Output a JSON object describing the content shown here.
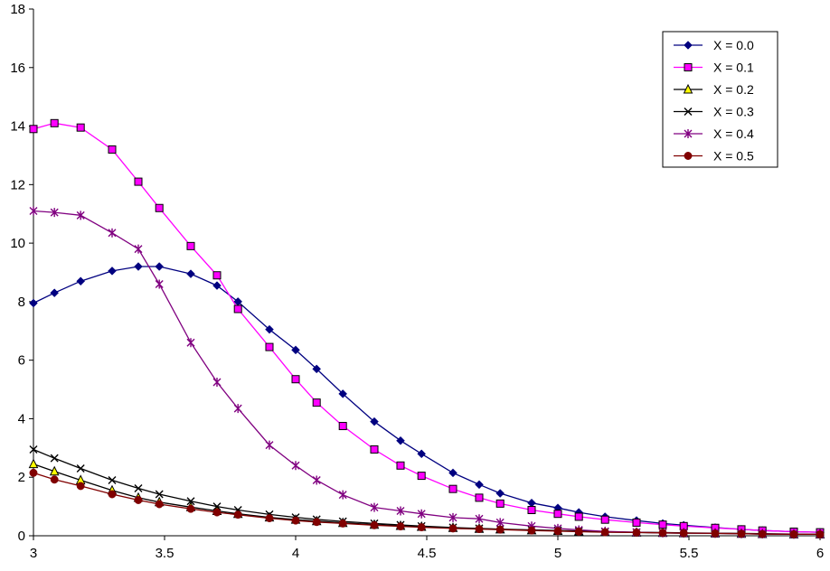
{
  "chart_data": {
    "type": "line",
    "title": "",
    "xlabel": "",
    "ylabel": "",
    "xlim": [
      3,
      6
    ],
    "ylim": [
      0,
      18
    ],
    "x_ticks": [
      3,
      3.5,
      4,
      4.5,
      5,
      5.5,
      6
    ],
    "x_tick_labels": [
      "3",
      "3.5",
      "4",
      "4.5",
      "5",
      "5.5",
      "6"
    ],
    "y_ticks": [
      0,
      2,
      4,
      6,
      8,
      10,
      12,
      14,
      16,
      18
    ],
    "y_tick_labels": [
      "0",
      "2",
      "4",
      "6",
      "8",
      "10",
      "12",
      "14",
      "16",
      "18"
    ],
    "grid": false,
    "legend_position": "top-right",
    "x": [
      3.0,
      3.08,
      3.18,
      3.3,
      3.4,
      3.48,
      3.6,
      3.7,
      3.78,
      3.9,
      4.0,
      4.08,
      4.18,
      4.3,
      4.4,
      4.48,
      4.6,
      4.7,
      4.78,
      4.9,
      5.0,
      5.08,
      5.18,
      5.3,
      5.4,
      5.48,
      5.6,
      5.7,
      5.78,
      5.9,
      6.0
    ],
    "series": [
      {
        "name": "X = 0.0",
        "color": "#000080",
        "marker": "diamond",
        "values": [
          7.95,
          8.3,
          8.7,
          9.05,
          9.2,
          9.2,
          8.95,
          8.55,
          8.0,
          7.05,
          6.35,
          5.7,
          4.85,
          3.9,
          3.25,
          2.8,
          2.15,
          1.75,
          1.45,
          1.12,
          0.95,
          0.8,
          0.65,
          0.52,
          0.42,
          0.36,
          0.28,
          0.22,
          0.18,
          0.14,
          0.12
        ]
      },
      {
        "name": "X = 0.1",
        "color": "#ff00ff",
        "marker": "square",
        "values": [
          13.9,
          14.1,
          13.95,
          13.2,
          12.1,
          11.2,
          9.9,
          8.9,
          7.75,
          6.45,
          5.35,
          4.55,
          3.75,
          2.95,
          2.4,
          2.05,
          1.6,
          1.3,
          1.1,
          0.88,
          0.75,
          0.65,
          0.55,
          0.45,
          0.38,
          0.33,
          0.27,
          0.22,
          0.18,
          0.14,
          0.12
        ]
      },
      {
        "name": "X = 0.2",
        "color": "#ffff00",
        "marker": "triangle",
        "values": [
          2.45,
          2.2,
          1.9,
          1.55,
          1.3,
          1.15,
          0.98,
          0.85,
          0.75,
          0.63,
          0.55,
          0.5,
          0.44,
          0.38,
          0.34,
          0.31,
          0.27,
          0.24,
          0.22,
          0.19,
          0.17,
          0.15,
          0.13,
          0.11,
          0.1,
          0.09,
          0.08,
          0.07,
          0.06,
          0.05,
          0.05
        ]
      },
      {
        "name": "X = 0.3",
        "color": "#000000",
        "marker": "x",
        "values": [
          2.95,
          2.65,
          2.3,
          1.9,
          1.62,
          1.42,
          1.18,
          1.0,
          0.88,
          0.73,
          0.63,
          0.56,
          0.49,
          0.42,
          0.37,
          0.33,
          0.28,
          0.25,
          0.23,
          0.2,
          0.18,
          0.16,
          0.14,
          0.12,
          0.11,
          0.1,
          0.09,
          0.08,
          0.07,
          0.06,
          0.05
        ]
      },
      {
        "name": "X = 0.4",
        "color": "#800080",
        "marker": "star",
        "values": [
          11.1,
          11.05,
          10.95,
          10.35,
          9.8,
          8.6,
          6.6,
          5.25,
          4.35,
          3.1,
          2.4,
          1.9,
          1.4,
          0.97,
          0.85,
          0.75,
          0.62,
          0.58,
          0.45,
          0.33,
          0.25,
          0.2,
          0.15,
          0.12,
          0.1,
          0.09,
          0.08,
          0.07,
          0.06,
          0.05,
          0.05
        ]
      },
      {
        "name": "X = 0.5",
        "color": "#800000",
        "marker": "circle",
        "values": [
          2.15,
          1.92,
          1.7,
          1.42,
          1.22,
          1.08,
          0.92,
          0.8,
          0.72,
          0.6,
          0.52,
          0.47,
          0.42,
          0.36,
          0.32,
          0.29,
          0.25,
          0.23,
          0.21,
          0.18,
          0.16,
          0.14,
          0.12,
          0.11,
          0.1,
          0.09,
          0.08,
          0.07,
          0.06,
          0.05,
          0.05
        ]
      }
    ]
  }
}
